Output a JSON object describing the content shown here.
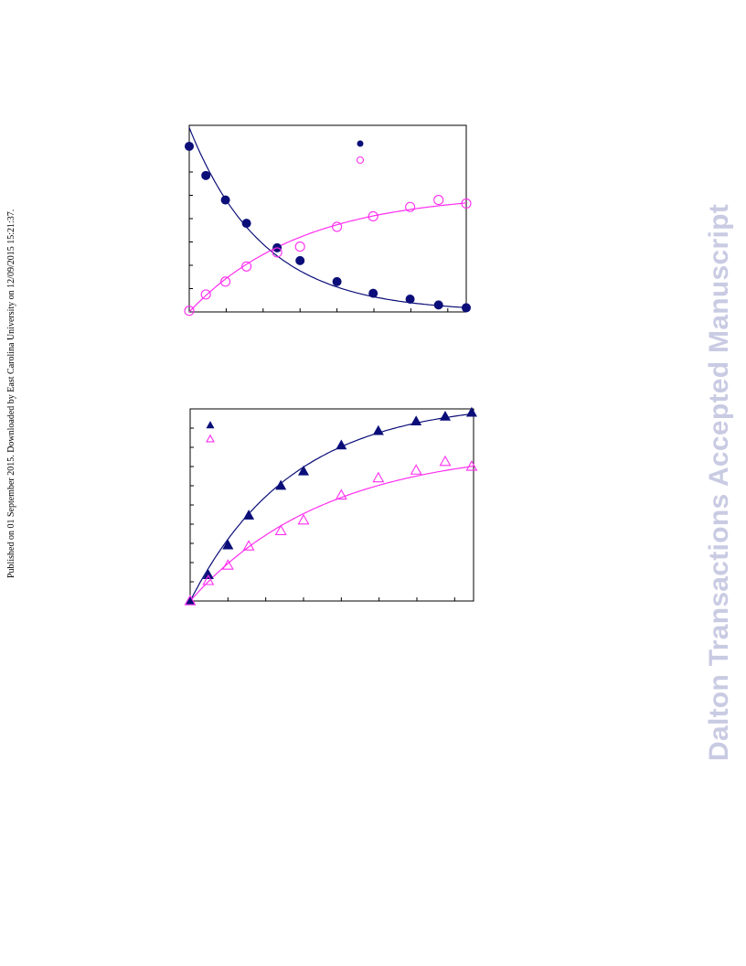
{
  "side_note": "Published on 01 September 2015. Downloaded by East Carolina University on 12/09/2015 15:21:37.",
  "watermark": "Dalton Transactions Accepted Manuscript",
  "colors": {
    "navy": "#0b0e78",
    "magenta": "#ff2ef0",
    "axis": "#000000",
    "watermark": "#c9cbe3"
  },
  "chart_data": [
    {
      "type": "scatter",
      "title": "",
      "xlabel": "",
      "ylabel": "",
      "xlim": [
        0,
        7.5
      ],
      "ylim": [
        0,
        8
      ],
      "x_ticks": [
        0,
        1,
        2,
        3,
        4,
        5,
        6,
        7
      ],
      "y_ticks": [
        0,
        1,
        2,
        3,
        4,
        5,
        6,
        7,
        8
      ],
      "legend": "top-right",
      "grid": false,
      "series": [
        {
          "marker": "filled-circle",
          "color": "#0b0e78",
          "x": [
            0.0,
            0.45,
            0.98,
            1.55,
            2.38,
            3.0,
            4.0,
            4.98,
            5.98,
            6.75,
            7.5
          ],
          "y": [
            7.1,
            5.85,
            4.8,
            3.8,
            2.75,
            2.2,
            1.3,
            0.8,
            0.55,
            0.3,
            0.18
          ]
        },
        {
          "marker": "open-circle",
          "color": "#ff2ef0",
          "x": [
            0.0,
            0.45,
            0.98,
            1.55,
            2.38,
            3.0,
            4.0,
            4.98,
            5.98,
            6.75,
            7.5
          ],
          "y": [
            0.05,
            0.75,
            1.3,
            1.95,
            2.55,
            2.8,
            3.65,
            4.1,
            4.5,
            4.8,
            4.65
          ]
        }
      ],
      "fit_curves": [
        {
          "color": "#0b0e78",
          "form": "exponential-decay",
          "y0": 7.9,
          "k": 0.5,
          "tail": 0
        },
        {
          "color": "#ff2ef0",
          "form": "exponential-rise",
          "ymax": 5.1,
          "k": 0.33
        }
      ]
    },
    {
      "type": "scatter",
      "title": "",
      "xlabel": "",
      "ylabel": "",
      "xlim": [
        0,
        7.5
      ],
      "ylim": [
        0,
        10
      ],
      "x_ticks": [
        0,
        1,
        2,
        3,
        4,
        5,
        6,
        7
      ],
      "y_ticks": [
        0,
        1,
        2,
        3,
        4,
        5,
        6,
        7,
        8,
        9,
        10
      ],
      "legend": "top-left",
      "grid": false,
      "series": [
        {
          "marker": "filled-triangle",
          "color": "#0b0e78",
          "x": [
            0.0,
            0.48,
            1.0,
            1.55,
            2.4,
            3.0,
            4.0,
            4.98,
            5.98,
            6.75,
            7.45
          ],
          "y": [
            0.0,
            1.35,
            2.9,
            4.45,
            6.0,
            6.75,
            8.1,
            8.85,
            9.35,
            9.6,
            9.8
          ]
        },
        {
          "marker": "open-triangle",
          "color": "#ff2ef0",
          "x": [
            0.0,
            0.48,
            1.0,
            1.55,
            2.4,
            3.0,
            4.0,
            4.98,
            5.98,
            6.75,
            7.45
          ],
          "y": [
            0.0,
            1.05,
            1.85,
            2.85,
            3.65,
            4.2,
            5.5,
            6.4,
            6.8,
            7.25,
            7.0
          ]
        }
      ],
      "fit_curves": [
        {
          "color": "#0b0e78",
          "form": "exponential-rise",
          "ymax": 10.4,
          "k": 0.37
        },
        {
          "color": "#ff2ef0",
          "form": "exponential-rise",
          "ymax": 8.0,
          "k": 0.28
        }
      ]
    }
  ]
}
